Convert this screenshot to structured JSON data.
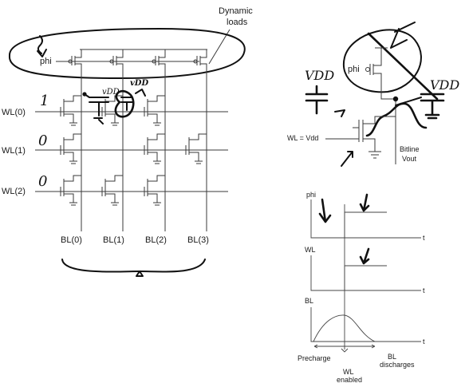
{
  "array": {
    "dynamic_loads_label": "Dynamic\nloads",
    "phi_label": "phi",
    "word_lines": [
      "WL(0)",
      "WL(1)",
      "WL(2)"
    ],
    "bit_lines": [
      "BL(0)",
      "BL(1)",
      "BL(2)",
      "BL(3)"
    ],
    "row_values": [
      "1",
      "0",
      "0"
    ]
  },
  "annotations": {
    "vdd_small_1": "vDD",
    "vdd_small_2": "vDD",
    "vdd_big_left": "VDD",
    "vdd_big_right": "VDD"
  },
  "cell_detail": {
    "phi_label": "phi",
    "wl_label": "WL = Vdd",
    "bitline_label": "Bitline",
    "vout_label": "Vout"
  },
  "timing": {
    "signals": [
      "phi",
      "WL",
      "BL"
    ],
    "t_label": "t",
    "precharge_label": "Precharge",
    "wl_enabled_label": "WL\nenabled",
    "bl_discharges_label": "BL\ndischarges"
  }
}
